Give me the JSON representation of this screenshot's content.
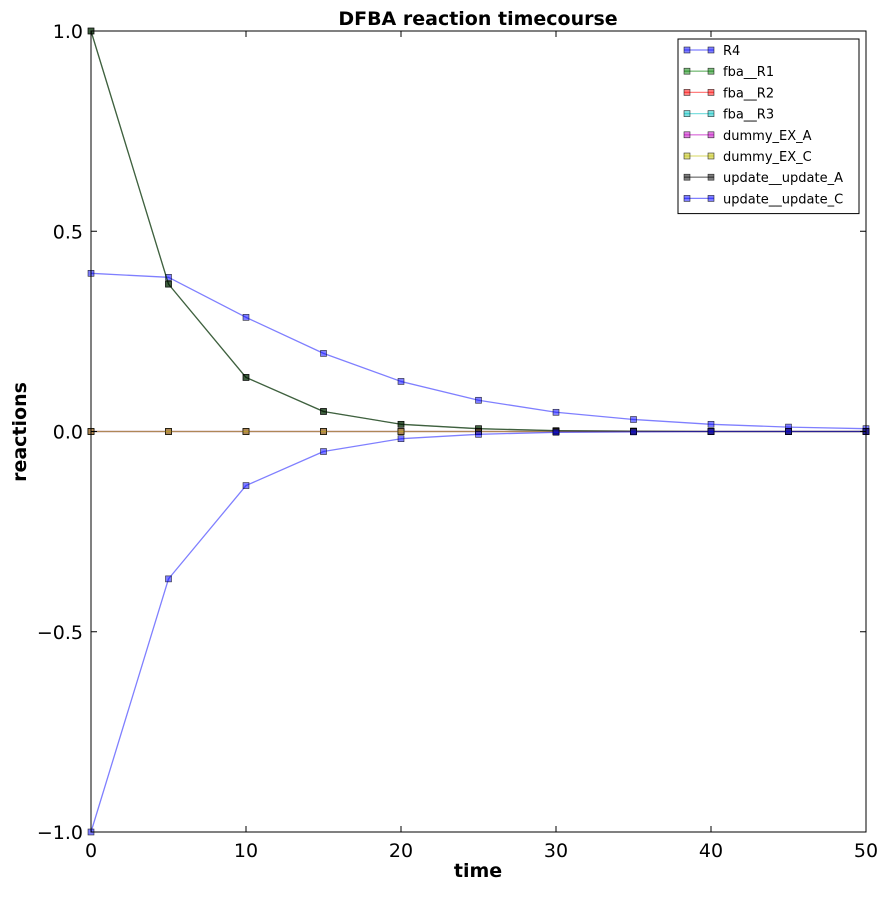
{
  "chart_data": {
    "type": "line",
    "title": "DFBA reaction timecourse",
    "xlabel": "time",
    "ylabel": "reactions",
    "xlim": [
      0,
      50
    ],
    "ylim": [
      -1.0,
      1.0
    ],
    "x_ticks": [
      "0",
      "10",
      "20",
      "30",
      "40",
      "50"
    ],
    "y_ticks": [
      "1.0",
      "0.5",
      "0.0",
      "−0.5",
      "−1.0"
    ],
    "grid": false,
    "legend_position": "top-right",
    "x": [
      0,
      5,
      10,
      15,
      20,
      25,
      30,
      35,
      40,
      45,
      50
    ],
    "series": [
      {
        "name": "R4",
        "color": "#0000ff",
        "values": [
          0.395,
          0.385,
          0.285,
          0.195,
          0.125,
          0.078,
          0.048,
          0.03,
          0.018,
          0.011,
          0.007
        ]
      },
      {
        "name": "fba__R1",
        "color": "#008000",
        "values": [
          1.0,
          0.368,
          0.135,
          0.05,
          0.018,
          0.007,
          0.002,
          0.001,
          0.0,
          0.0,
          0.0
        ]
      },
      {
        "name": "fba__R2",
        "color": "#ff0000",
        "values": [
          0.0,
          0.0,
          0.0,
          0.0,
          0.0,
          0.0,
          0.0,
          0.0,
          0.0,
          0.0,
          0.0
        ]
      },
      {
        "name": "fba__R3",
        "color": "#00bfbf",
        "values": [
          0.0,
          0.0,
          0.0,
          0.0,
          0.0,
          0.0,
          0.0,
          0.0,
          0.0,
          0.0,
          0.0
        ]
      },
      {
        "name": "dummy_EX_A",
        "color": "#bf00bf",
        "values": [
          0.0,
          0.0,
          0.0,
          0.0,
          0.0,
          0.0,
          0.0,
          0.0,
          0.0,
          0.0,
          0.0
        ]
      },
      {
        "name": "dummy_EX_C",
        "color": "#bfbf00",
        "values": [
          0.0,
          0.0,
          0.0,
          0.0,
          0.0,
          0.0,
          0.0,
          0.0,
          0.0,
          0.0,
          0.0
        ]
      },
      {
        "name": "update__update_A",
        "color": "#000000",
        "values": [
          1.0,
          0.368,
          0.135,
          0.05,
          0.018,
          0.007,
          0.002,
          0.001,
          0.0,
          0.0,
          0.0
        ]
      },
      {
        "name": "update__update_C",
        "color": "#0000ff",
        "values": [
          -1.0,
          -0.368,
          -0.135,
          -0.05,
          -0.018,
          -0.007,
          -0.002,
          -0.001,
          0.0,
          0.0,
          0.0
        ]
      }
    ]
  }
}
